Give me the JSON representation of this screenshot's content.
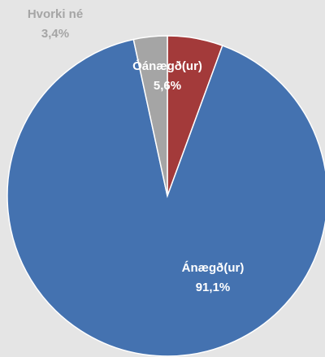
{
  "chart_data": {
    "type": "pie",
    "categories": [
      "Óánægð(ur)",
      "Ánægð(ur)",
      "Hvorki né"
    ],
    "values": [
      5.6,
      91.1,
      3.4
    ],
    "value_labels": [
      "5,6%",
      "91,1%",
      "3,4%"
    ],
    "colors": [
      "#a33a3a",
      "#4472b0",
      "#a5a5a5"
    ]
  }
}
